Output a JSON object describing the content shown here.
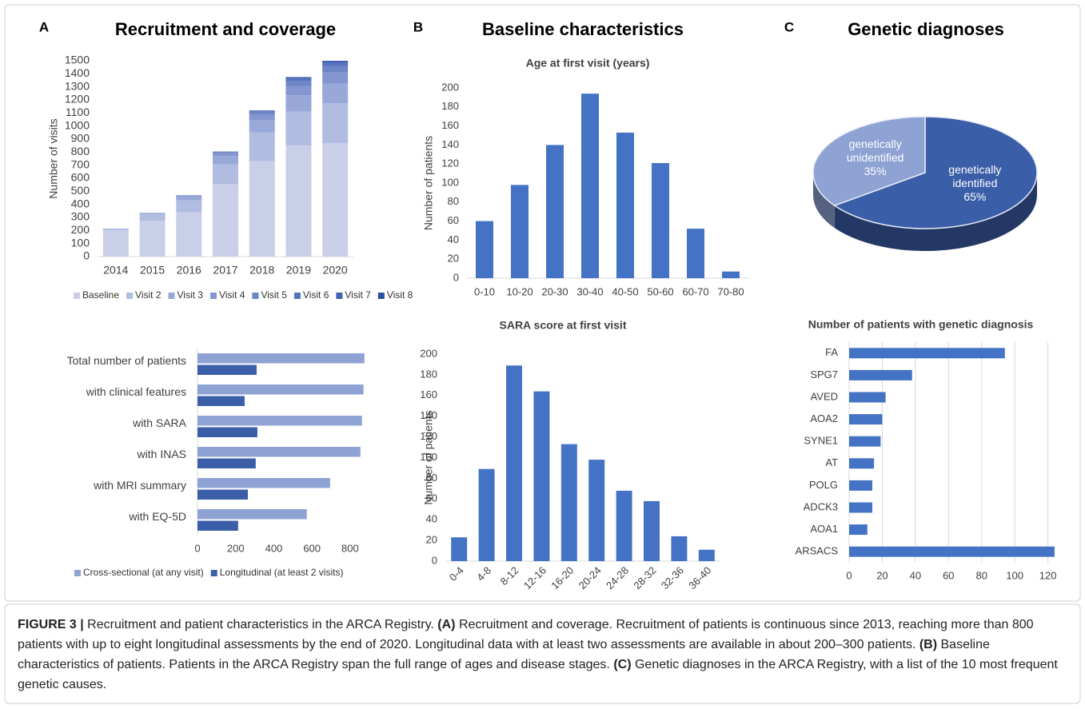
{
  "panels": [
    {
      "letter": "A",
      "title": "Recruitment and coverage"
    },
    {
      "letter": "B",
      "title": "Baseline characteristics"
    },
    {
      "letter": "C",
      "title": "Genetic diagnoses"
    }
  ],
  "chart_data": [
    {
      "type": "stacked_bar",
      "y_label": "Number of visits",
      "categories": [
        "2014",
        "2015",
        "2016",
        "2017",
        "2018",
        "2019",
        "2020"
      ],
      "series": [
        {
          "name": "Baseline",
          "color": "#c9cfe9",
          "values": [
            200,
            275,
            340,
            555,
            730,
            850,
            870
          ]
        },
        {
          "name": "Visit 2",
          "color": "#b1bce1",
          "values": [
            15,
            50,
            90,
            150,
            220,
            260,
            305
          ]
        },
        {
          "name": "Visit 3",
          "color": "#98a8d8",
          "values": [
            0,
            10,
            30,
            65,
            95,
            125,
            150
          ]
        },
        {
          "name": "Visit 4",
          "color": "#8396cf",
          "values": [
            0,
            0,
            10,
            25,
            45,
            70,
            85
          ]
        },
        {
          "name": "Visit 5",
          "color": "#6d84c6",
          "values": [
            0,
            0,
            0,
            10,
            20,
            40,
            50
          ]
        },
        {
          "name": "Visit 6",
          "color": "#5673bd",
          "values": [
            0,
            0,
            0,
            0,
            10,
            20,
            25
          ]
        },
        {
          "name": "Visit 7",
          "color": "#4262b1",
          "values": [
            0,
            0,
            0,
            0,
            0,
            10,
            10
          ]
        },
        {
          "name": "Visit 8",
          "color": "#2d4f9c",
          "values": [
            0,
            0,
            0,
            0,
            0,
            0,
            5
          ]
        }
      ],
      "ylim": [
        0,
        1500
      ],
      "yticks": [
        0,
        100,
        200,
        300,
        400,
        500,
        600,
        700,
        800,
        900,
        1000,
        1100,
        1200,
        1300,
        1400,
        1500
      ],
      "grid": false
    },
    {
      "type": "bar",
      "horizontal": true,
      "categories": [
        "Total number of patients",
        "with clinical features",
        "with SARA",
        "with INAS",
        "with MRI summary",
        "with EQ-5D"
      ],
      "series": [
        {
          "name": "Cross-sectional (at any visit)",
          "color": "#8fa2d4",
          "values": [
            875,
            870,
            862,
            854,
            695,
            573
          ]
        },
        {
          "name": "Longitudinal (at least 2 visits)",
          "color": "#3a5ea8",
          "values": [
            310,
            247,
            314,
            305,
            264,
            213
          ]
        }
      ],
      "xlim": [
        0,
        880
      ],
      "xticks": [
        0,
        200,
        400,
        600,
        800
      ],
      "grid": false
    },
    {
      "type": "bar",
      "title": "Age at first visit (years)",
      "y_label": "Number of patients",
      "color": "#4472c4",
      "categories": [
        "0-10",
        "10-20",
        "20-30",
        "30-40",
        "40-50",
        "50-60",
        "60-70",
        "70-80"
      ],
      "values": [
        60,
        98,
        140,
        194,
        153,
        121,
        52,
        7
      ],
      "ylim": [
        0,
        200
      ],
      "yticks": [
        0,
        20,
        40,
        60,
        80,
        100,
        120,
        140,
        160,
        180,
        200
      ],
      "grid": false
    },
    {
      "type": "bar",
      "title": "SARA score at first visit",
      "y_label": "Number of patients",
      "color": "#4472c4",
      "categories": [
        "0-4",
        "4-8",
        "8-12",
        "12-16",
        "16-20",
        "20-24",
        "24-28",
        "28-32",
        "32-36",
        "36-40"
      ],
      "values": [
        23,
        89,
        189,
        164,
        113,
        98,
        68,
        58,
        24,
        11
      ],
      "ylim": [
        0,
        200
      ],
      "yticks": [
        0,
        20,
        40,
        60,
        80,
        100,
        120,
        140,
        160,
        180,
        200
      ],
      "grid": false
    },
    {
      "type": "pie",
      "categories": [
        "genetically identified",
        "genetically unidentified"
      ],
      "values": [
        65,
        35
      ],
      "value_labels": [
        "65%",
        "35%"
      ],
      "colors": [
        "#3a5ea8",
        "#8fa2d4"
      ]
    },
    {
      "type": "bar",
      "horizontal": true,
      "title": "Number of patients with genetic diagnosis",
      "color": "#4472c4",
      "categories": [
        "FA",
        "SPG7",
        "AVED",
        "AOA2",
        "SYNE1",
        "AT",
        "POLG",
        "ADCK3",
        "AOA1",
        "ARSACS"
      ],
      "values": [
        94,
        38,
        22,
        20,
        19,
        15,
        14,
        14,
        11,
        124
      ],
      "xlim": [
        0,
        125
      ],
      "xticks": [
        0,
        20,
        40,
        60,
        80,
        100,
        120
      ],
      "grid": true
    }
  ],
  "caption": [
    {
      "text": "FIGURE 3 |",
      "bold": true
    },
    {
      "text": " Recruitment and patient characteristics in the ARCA Registry. "
    },
    {
      "text": "(A)",
      "bold": true
    },
    {
      "text": " Recruitment and coverage. Recruitment of patients is continuous since 2013, reaching more than 800 patients with up to eight longitudinal assessments by the end of 2020. Longitudinal data with at least two assessments are available in about 200–300 patients. "
    },
    {
      "text": "(B)",
      "bold": true
    },
    {
      "text": " Baseline characteristics of patients. Patients in the ARCA Registry span the full range of ages and disease stages. "
    },
    {
      "text": "(C)",
      "bold": true
    },
    {
      "text": " Genetic diagnoses in the ARCA Registry, with a list of the 10 most frequent genetic causes."
    }
  ]
}
